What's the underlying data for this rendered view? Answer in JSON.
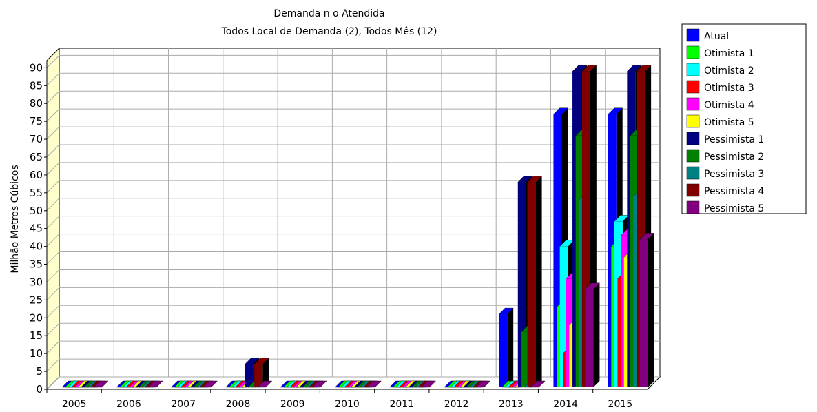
{
  "chart_data": {
    "type": "bar3d",
    "title": "Demanda n o Atendida",
    "subtitle": "Todos Local de Demanda (2),  Todos Mês (12)",
    "y_label": "Milhão Metros Cúbicos",
    "categories": [
      "2005",
      "2006",
      "2007",
      "2008",
      "2009",
      "2010",
      "2011",
      "2012",
      "2013",
      "2014",
      "2015"
    ],
    "ylim": [
      0,
      92
    ],
    "yticks": [
      0,
      5,
      10,
      15,
      20,
      25,
      30,
      35,
      40,
      45,
      50,
      55,
      60,
      65,
      70,
      75,
      80,
      85,
      90
    ],
    "grid": true,
    "legend": "right",
    "series": [
      {
        "name": "Atual",
        "color": "#0000ff",
        "values": [
          0,
          0,
          0,
          0,
          0,
          0,
          0,
          0,
          21,
          77,
          77
        ]
      },
      {
        "name": "Otimista 1",
        "color": "#00ff00",
        "values": [
          0,
          0,
          0,
          0,
          0,
          0,
          0,
          0,
          0,
          23,
          40
        ]
      },
      {
        "name": "Otimista 2",
        "color": "#00ffff",
        "values": [
          0,
          0,
          0,
          0,
          0,
          0,
          0,
          0,
          0,
          40,
          47
        ]
      },
      {
        "name": "Otimista 3",
        "color": "#ff0000",
        "values": [
          0,
          0,
          0,
          0,
          0,
          0,
          0,
          0,
          0,
          10,
          31
        ]
      },
      {
        "name": "Otimista 4",
        "color": "#ff00ff",
        "values": [
          0,
          0,
          0,
          0,
          0,
          0,
          0,
          0,
          0,
          31,
          43
        ]
      },
      {
        "name": "Otimista 5",
        "color": "#ffff00",
        "values": [
          0,
          0,
          0,
          0,
          0,
          0,
          0,
          0,
          0,
          18,
          37
        ]
      },
      {
        "name": "Pessimista 1",
        "color": "#000080",
        "values": [
          0,
          0,
          0,
          7,
          0,
          0,
          0,
          0,
          58,
          89,
          89
        ]
      },
      {
        "name": "Pessimista 2",
        "color": "#008000",
        "values": [
          0,
          0,
          0,
          0,
          0,
          0,
          0,
          0,
          16,
          71,
          71
        ]
      },
      {
        "name": "Pessimista 3",
        "color": "#008080",
        "values": [
          0,
          0,
          0,
          0,
          0,
          0,
          0,
          0,
          0,
          53,
          54
        ]
      },
      {
        "name": "Pessimista 4",
        "color": "#800000",
        "values": [
          0,
          0,
          0,
          7,
          0,
          0,
          0,
          0,
          58,
          89,
          89
        ]
      },
      {
        "name": "Pessimista 5",
        "color": "#800080",
        "values": [
          0,
          0,
          0,
          0,
          0,
          0,
          0,
          0,
          0,
          28,
          42
        ]
      }
    ]
  }
}
